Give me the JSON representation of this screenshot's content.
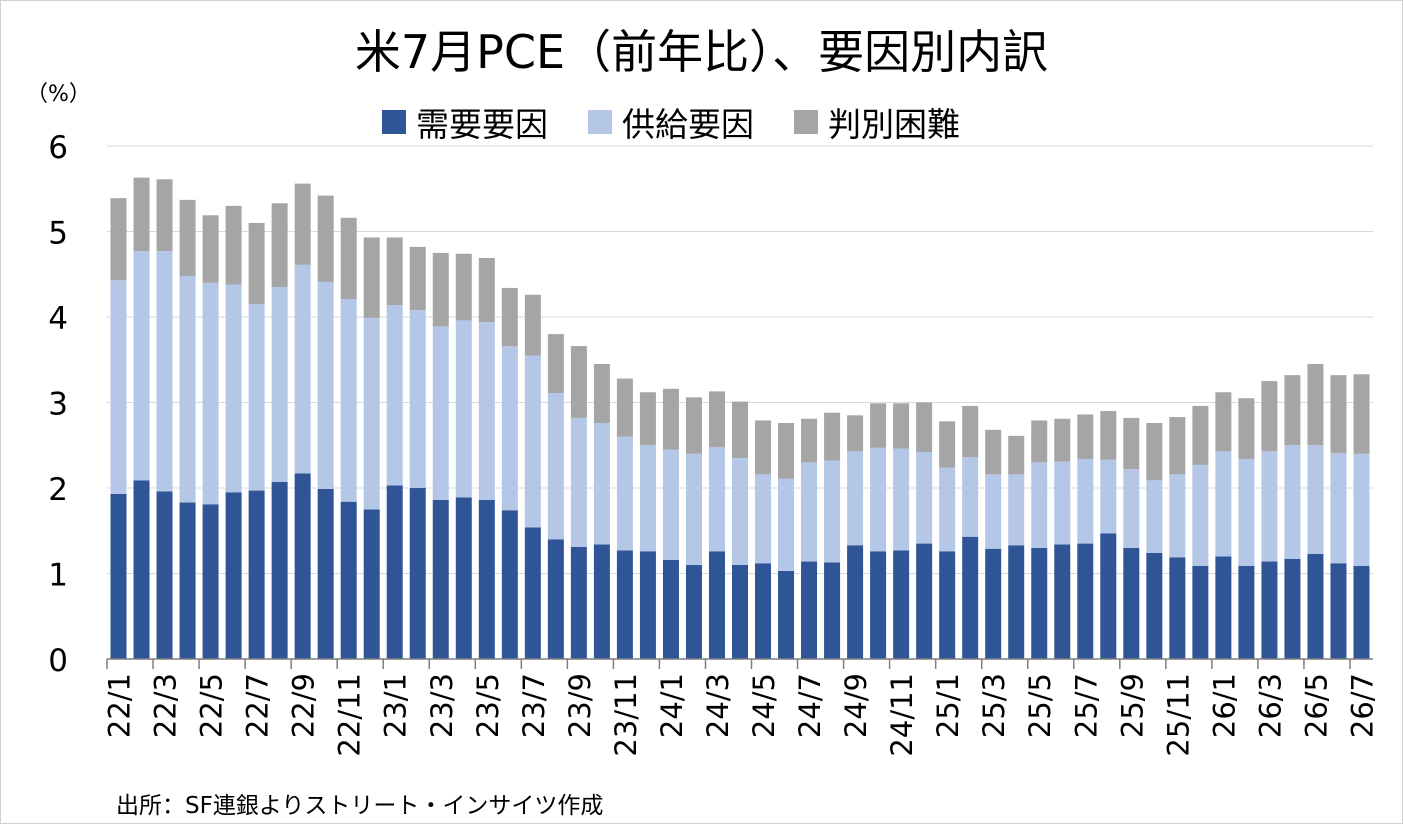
{
  "chart_data": {
    "type": "bar",
    "stacked": true,
    "title": "米7月PCE（前年比）、要因別内訳",
    "unit_label": "（%）",
    "ylim": [
      0,
      6
    ],
    "yticks": [
      0,
      1,
      2,
      3,
      4,
      5,
      6
    ],
    "grid": true,
    "legend_position": "top",
    "categories": [
      "22/1",
      "22/2",
      "22/3",
      "22/4",
      "22/5",
      "22/6",
      "22/7",
      "22/8",
      "22/9",
      "22/10",
      "22/11",
      "22/12",
      "23/1",
      "23/2",
      "23/3",
      "23/4",
      "23/5",
      "23/6",
      "23/7",
      "23/8",
      "23/9",
      "23/10",
      "23/11",
      "23/12",
      "24/1",
      "24/2",
      "24/3",
      "24/4",
      "24/5",
      "24/6",
      "24/7",
      "24/8",
      "24/9",
      "24/10",
      "24/11",
      "24/12",
      "25/1",
      "25/2",
      "25/3",
      "25/4",
      "25/5",
      "25/6",
      "25/7",
      "25/8",
      "25/9",
      "25/10",
      "25/11",
      "25/12",
      "26/1",
      "26/2",
      "26/3",
      "26/4",
      "26/5",
      "26/6",
      "26/7"
    ],
    "xtick_labels": [
      "22/1",
      "",
      "22/3",
      "",
      "22/5",
      "",
      "22/7",
      "",
      "22/9",
      "",
      "22/11",
      "",
      "23/1",
      "",
      "23/3",
      "",
      "23/5",
      "",
      "23/7",
      "",
      "23/9",
      "",
      "23/11",
      "",
      "24/1",
      "",
      "24/3",
      "",
      "24/5",
      "",
      "24/7",
      "",
      "24/9",
      "",
      "24/11",
      "",
      "25/1",
      "",
      "25/3",
      "",
      "25/5",
      "",
      "25/7",
      "",
      "25/9",
      "",
      "25/11",
      "",
      "26/1",
      "",
      "26/3",
      "",
      "26/5",
      "",
      "26/7"
    ],
    "series": [
      {
        "name": "需要要因",
        "color": "#2f5597",
        "values": [
          1.93,
          2.09,
          1.96,
          1.83,
          1.81,
          1.95,
          1.97,
          2.07,
          2.17,
          1.99,
          1.84,
          1.75,
          2.03,
          2.0,
          1.86,
          1.89,
          1.86,
          1.74,
          1.54,
          1.4,
          1.31,
          1.34,
          1.27,
          1.26,
          1.16,
          1.1,
          1.26,
          1.1,
          1.12,
          1.03,
          1.14,
          1.13,
          1.33,
          1.26,
          1.27,
          1.35,
          1.26,
          1.43,
          1.29,
          1.33,
          1.3,
          1.34,
          1.35,
          1.47,
          1.3,
          1.24,
          1.19,
          1.09,
          1.2,
          1.09,
          1.14,
          1.17,
          1.23,
          1.12,
          1.09
        ]
      },
      {
        "name": "供給要因",
        "color": "#b4c7e7",
        "values": [
          2.5,
          2.68,
          2.81,
          2.65,
          2.59,
          2.43,
          2.18,
          2.28,
          2.44,
          2.42,
          2.37,
          2.24,
          2.11,
          2.08,
          2.03,
          2.07,
          2.08,
          1.92,
          2.01,
          1.71,
          1.51,
          1.42,
          1.33,
          1.24,
          1.29,
          1.3,
          1.22,
          1.25,
          1.04,
          1.08,
          1.16,
          1.19,
          1.1,
          1.21,
          1.19,
          1.07,
          0.98,
          0.93,
          0.87,
          0.83,
          1.0,
          0.97,
          0.99,
          0.86,
          0.92,
          0.85,
          0.97,
          1.18,
          1.23,
          1.25,
          1.29,
          1.33,
          1.27,
          1.29,
          1.31
        ]
      },
      {
        "name": "判別困難",
        "color": "#a5a5a5",
        "values": [
          0.96,
          0.86,
          0.84,
          0.89,
          0.79,
          0.92,
          0.95,
          0.98,
          0.95,
          1.01,
          0.95,
          0.94,
          0.79,
          0.74,
          0.86,
          0.78,
          0.75,
          0.68,
          0.71,
          0.69,
          0.84,
          0.69,
          0.68,
          0.62,
          0.71,
          0.66,
          0.65,
          0.66,
          0.63,
          0.65,
          0.51,
          0.56,
          0.42,
          0.52,
          0.53,
          0.58,
          0.54,
          0.6,
          0.52,
          0.45,
          0.49,
          0.5,
          0.52,
          0.57,
          0.6,
          0.67,
          0.67,
          0.69,
          0.69,
          0.71,
          0.82,
          0.82,
          0.95,
          0.91,
          0.93
        ]
      }
    ],
    "source_note": "出所：SF連銀よりストリート・インサイツ作成"
  }
}
